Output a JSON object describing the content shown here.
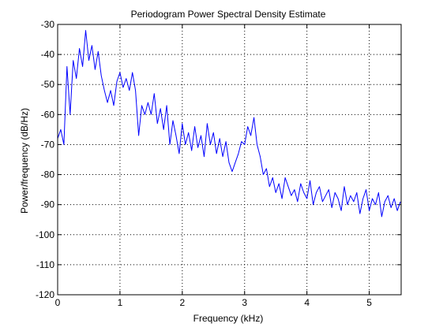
{
  "chart_data": {
    "type": "line",
    "title": "Periodogram Power Spectral Density Estimate",
    "xlabel": "Frequency (kHz)",
    "ylabel": "Power/frequency (dB/Hz)",
    "xlim": [
      0,
      5.512
    ],
    "ylim": [
      -120,
      -30
    ],
    "xticks": [
      0,
      1,
      2,
      3,
      4,
      5
    ],
    "xtick_labels": [
      "0",
      "1",
      "2",
      "3",
      "4",
      "5"
    ],
    "yticks": [
      -120,
      -110,
      -100,
      -90,
      -80,
      -70,
      -60,
      -50,
      -40,
      -30
    ],
    "ytick_labels": [
      "-120",
      "-110",
      "-100",
      "-90",
      "-80",
      "-70",
      "-60",
      "-50",
      "-40",
      "-30"
    ],
    "grid": true,
    "line_color": "#0000ff",
    "series": [
      {
        "x": [
          0,
          0.05,
          0.1,
          0.15,
          0.2,
          0.25,
          0.3,
          0.35,
          0.4,
          0.45,
          0.5,
          0.55,
          0.6,
          0.65,
          0.7,
          0.75,
          0.8,
          0.85,
          0.9,
          0.95,
          1.0,
          1.05,
          1.1,
          1.15,
          1.2,
          1.25,
          1.3,
          1.35,
          1.4,
          1.45,
          1.5,
          1.55,
          1.6,
          1.65,
          1.7,
          1.75,
          1.8,
          1.85,
          1.9,
          1.95,
          2.0,
          2.05,
          2.1,
          2.15,
          2.2,
          2.25,
          2.3,
          2.35,
          2.4,
          2.45,
          2.5,
          2.55,
          2.6,
          2.65,
          2.7,
          2.75,
          2.8,
          2.85,
          2.9,
          2.95,
          3.0,
          3.05,
          3.1,
          3.15,
          3.2,
          3.25,
          3.3,
          3.35,
          3.4,
          3.45,
          3.5,
          3.55,
          3.6,
          3.65,
          3.7,
          3.75,
          3.8,
          3.85,
          3.9,
          3.95,
          4.0,
          4.05,
          4.1,
          4.15,
          4.2,
          4.25,
          4.3,
          4.35,
          4.4,
          4.45,
          4.5,
          4.55,
          4.6,
          4.65,
          4.7,
          4.75,
          4.8,
          4.85,
          4.9,
          4.95,
          5.0,
          5.05,
          5.1,
          5.15,
          5.2,
          5.25,
          5.3,
          5.35,
          5.4,
          5.45,
          5.5
        ],
        "y": [
          -68,
          -65,
          -70,
          -44,
          -60,
          -42,
          -48,
          -38,
          -44,
          -32,
          -42,
          -37,
          -45,
          -39,
          -47,
          -52,
          -56,
          -52,
          -57,
          -49,
          -46,
          -51,
          -48,
          -52,
          -46,
          -52,
          -67,
          -57,
          -60,
          -56,
          -60,
          -53,
          -63,
          -58,
          -65,
          -57,
          -70,
          -62,
          -67,
          -73,
          -63,
          -70,
          -66,
          -72,
          -64,
          -71,
          -67,
          -74,
          -63,
          -70,
          -66,
          -73,
          -68,
          -74,
          -69,
          -76,
          -79,
          -76,
          -73,
          -69,
          -70,
          -64,
          -67,
          -61,
          -70,
          -74,
          -80,
          -78,
          -84,
          -81,
          -86,
          -83,
          -88,
          -81,
          -84,
          -87,
          -85,
          -89,
          -83,
          -86,
          -88,
          -82,
          -90,
          -86,
          -84,
          -89,
          -87,
          -85,
          -91,
          -86,
          -88,
          -92,
          -84,
          -90,
          -87,
          -89,
          -86,
          -93,
          -88,
          -85,
          -92,
          -88,
          -90,
          -86,
          -94,
          -89,
          -87,
          -91,
          -88,
          -92,
          -89
        ]
      }
    ]
  }
}
